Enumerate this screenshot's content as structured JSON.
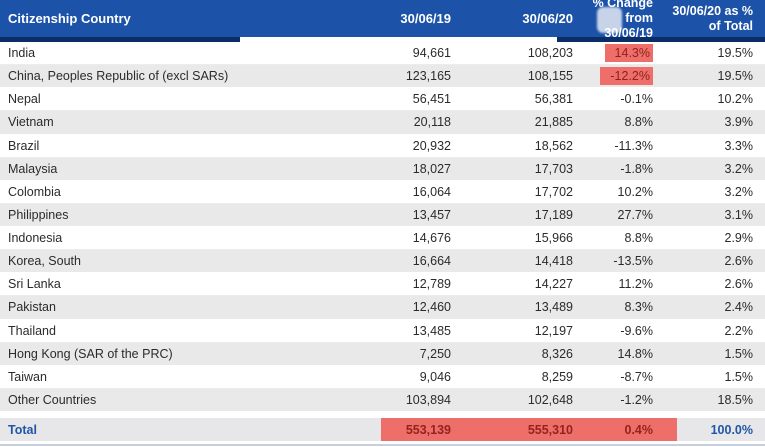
{
  "table": {
    "columns": [
      {
        "label": "Citizenship Country"
      },
      {
        "label": "30/06/19"
      },
      {
        "label": "30/06/20"
      },
      {
        "line1": "% Change from",
        "line2": "30/06/19"
      },
      {
        "line1": "30/06/20 as %",
        "line2": "of Total"
      }
    ],
    "rows": [
      {
        "country": "India",
        "v19": "94,661",
        "v20": "108,203",
        "chg": "14.3%",
        "pct": "19.5%",
        "chg_highlight": true
      },
      {
        "country": "China, Peoples Republic of (excl SARs)",
        "v19": "123,165",
        "v20": "108,155",
        "chg": "-12.2%",
        "pct": "19.5%",
        "chg_highlight": true
      },
      {
        "country": "Nepal",
        "v19": "56,451",
        "v20": "56,381",
        "chg": "-0.1%",
        "pct": "10.2%",
        "chg_highlight": false
      },
      {
        "country": "Vietnam",
        "v19": "20,118",
        "v20": "21,885",
        "chg": "8.8%",
        "pct": "3.9%",
        "chg_highlight": false
      },
      {
        "country": "Brazil",
        "v19": "20,932",
        "v20": "18,562",
        "chg": "-11.3%",
        "pct": "3.3%",
        "chg_highlight": false
      },
      {
        "country": "Malaysia",
        "v19": "18,027",
        "v20": "17,703",
        "chg": "-1.8%",
        "pct": "3.2%",
        "chg_highlight": false
      },
      {
        "country": "Colombia",
        "v19": "16,064",
        "v20": "17,702",
        "chg": "10.2%",
        "pct": "3.2%",
        "chg_highlight": false
      },
      {
        "country": "Philippines",
        "v19": "13,457",
        "v20": "17,189",
        "chg": "27.7%",
        "pct": "3.1%",
        "chg_highlight": false
      },
      {
        "country": "Indonesia",
        "v19": "14,676",
        "v20": "15,966",
        "chg": "8.8%",
        "pct": "2.9%",
        "chg_highlight": false
      },
      {
        "country": "Korea, South",
        "v19": "16,664",
        "v20": "14,418",
        "chg": "-13.5%",
        "pct": "2.6%",
        "chg_highlight": false
      },
      {
        "country": "Sri Lanka",
        "v19": "12,789",
        "v20": "14,227",
        "chg": "11.2%",
        "pct": "2.6%",
        "chg_highlight": false
      },
      {
        "country": "Pakistan",
        "v19": "12,460",
        "v20": "13,489",
        "chg": "8.3%",
        "pct": "2.4%",
        "chg_highlight": false
      },
      {
        "country": "Thailand",
        "v19": "13,485",
        "v20": "12,197",
        "chg": "-9.6%",
        "pct": "2.2%",
        "chg_highlight": false
      },
      {
        "country": "Hong Kong (SAR of the PRC)",
        "v19": "7,250",
        "v20": "8,326",
        "chg": "14.8%",
        "pct": "1.5%",
        "chg_highlight": false
      },
      {
        "country": "Taiwan",
        "v19": "9,046",
        "v20": "8,259",
        "chg": "-8.7%",
        "pct": "1.5%",
        "chg_highlight": false
      },
      {
        "country": "Other Countries",
        "v19": "103,894",
        "v20": "102,648",
        "chg": "-1.2%",
        "pct": "18.5%",
        "chg_highlight": false
      }
    ],
    "total": {
      "label": "Total",
      "v19": "553,139",
      "v20": "555,310",
      "chg": "0.4%",
      "pct": "100.0%"
    }
  },
  "colors": {
    "header_bg": "#1c52a8",
    "header_border": "#0a2d68",
    "header_text": "#ffffff",
    "row_alt_bg": "#e9e9e9",
    "highlight_bg": "#ee6f69",
    "highlight_text": "#8e211d",
    "total_bg": "#e7e7ea",
    "total_text_blue": "#1f56a6",
    "bottom_rule": "#c7d0e0"
  }
}
